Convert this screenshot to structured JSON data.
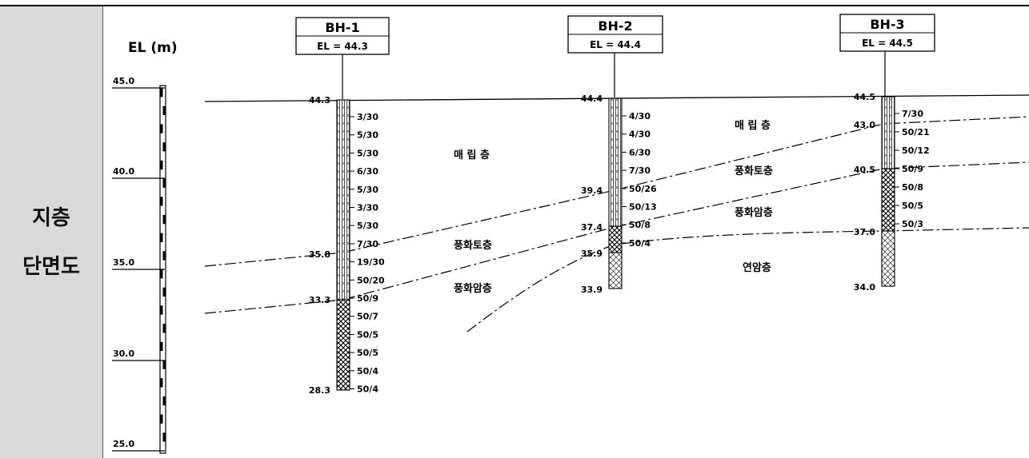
{
  "section": {
    "title_line1": "지층",
    "title_line2": "단면도"
  },
  "axis": {
    "label": "EL (m)",
    "ticks": [
      "45.0",
      "40.0",
      "35.0",
      "30.0",
      "25.0"
    ]
  },
  "boreholes": [
    {
      "name": "BH-1",
      "el_label": "EL = 44.3",
      "top": "44.3",
      "bottom": "28.3",
      "boundaries": [
        "35.8",
        "33.3"
      ],
      "spt": [
        "3/30",
        "5/30",
        "5/30",
        "6/30",
        "5/30",
        "3/30",
        "5/30",
        "7/30",
        "19/30",
        "50/20",
        "50/9",
        "50/7",
        "50/5",
        "50/5",
        "50/4",
        "50/4"
      ]
    },
    {
      "name": "BH-2",
      "el_label": "EL = 44.4",
      "top": "44.4",
      "bottom": "33.9",
      "boundaries": [
        "39.4",
        "37.4",
        "35.9"
      ],
      "spt": [
        "4/30",
        "4/30",
        "6/30",
        "7/30",
        "50/26",
        "50/13",
        "50/8",
        "50/4"
      ]
    },
    {
      "name": "BH-3",
      "el_label": "EL = 44.5",
      "top": "44.5",
      "bottom": "34.0",
      "boundaries": [
        "43.0",
        "40.5",
        "37.0"
      ],
      "spt": [
        "7/30",
        "50/21",
        "50/12",
        "50/9",
        "50/8",
        "50/5",
        "50/3"
      ]
    }
  ],
  "layers": {
    "fill_a": "매 립 층",
    "fill_b": "매 립 층",
    "weathered_soil_a": "풍화토층",
    "weathered_soil_b": "풍화토층",
    "weathered_rock_a": "풍화암층",
    "weathered_rock_b": "풍화암층",
    "soft_rock": "연암층"
  }
}
